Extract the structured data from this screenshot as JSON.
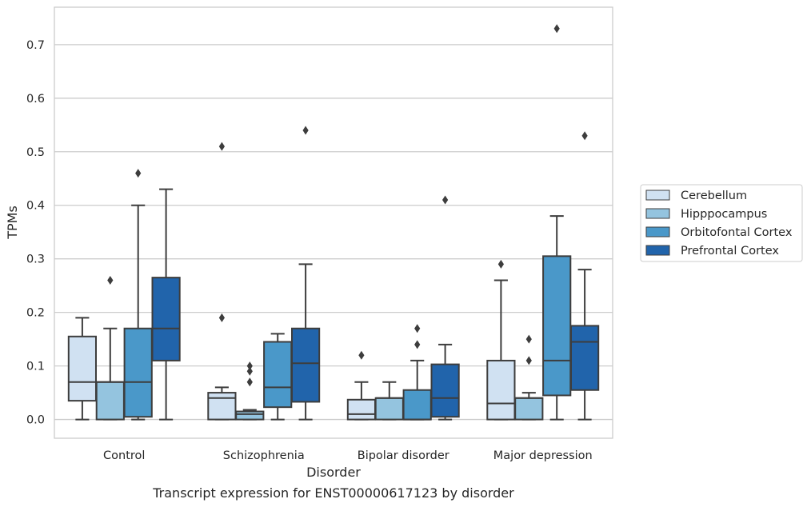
{
  "chart_data": {
    "type": "box",
    "caption": "Transcript expression for ENST00000617123 by disorder",
    "xlabel": "Disorder",
    "ylabel": "TPMs",
    "ylim": [
      -0.035,
      0.77
    ],
    "yticks": [
      "0.0",
      "0.1",
      "0.2",
      "0.3",
      "0.4",
      "0.5",
      "0.6",
      "0.7"
    ],
    "grid": "horizontal",
    "legend_position": "right",
    "categories": [
      "Control",
      "Schizophrenia",
      "Bipolar disorder",
      "Major depression"
    ],
    "series": [
      {
        "name": "Cerebellum",
        "color": "#d0e1f2",
        "boxes": [
          {
            "whislo": 0.0,
            "q1": 0.035,
            "med": 0.07,
            "q3": 0.155,
            "whishi": 0.19,
            "fliers": []
          },
          {
            "whislo": 0.0,
            "q1": 0.0,
            "med": 0.04,
            "q3": 0.05,
            "whishi": 0.06,
            "fliers": [
              0.19,
              0.51
            ]
          },
          {
            "whislo": 0.0,
            "q1": 0.0,
            "med": 0.01,
            "q3": 0.037,
            "whishi": 0.07,
            "fliers": [
              0.12
            ]
          },
          {
            "whislo": 0.0,
            "q1": 0.0,
            "med": 0.03,
            "q3": 0.11,
            "whishi": 0.26,
            "fliers": [
              0.29
            ]
          }
        ]
      },
      {
        "name": "Hipppocampus",
        "color": "#94c4df",
        "boxes": [
          {
            "whislo": 0.0,
            "q1": 0.0,
            "med": 0.07,
            "q3": 0.07,
            "whishi": 0.17,
            "fliers": [
              0.26
            ]
          },
          {
            "whislo": 0.0,
            "q1": 0.0,
            "med": 0.01,
            "q3": 0.015,
            "whishi": 0.018,
            "fliers": [
              0.07,
              0.09,
              0.1
            ]
          },
          {
            "whislo": 0.0,
            "q1": 0.0,
            "med": 0.04,
            "q3": 0.04,
            "whishi": 0.07,
            "fliers": []
          },
          {
            "whislo": 0.0,
            "q1": 0.0,
            "med": 0.04,
            "q3": 0.04,
            "whishi": 0.05,
            "fliers": [
              0.11,
              0.15
            ]
          }
        ]
      },
      {
        "name": "Orbitofontal Cortex",
        "color": "#4a98c9",
        "boxes": [
          {
            "whislo": 0.0,
            "q1": 0.005,
            "med": 0.07,
            "q3": 0.17,
            "whishi": 0.4,
            "fliers": [
              0.46
            ]
          },
          {
            "whislo": 0.0,
            "q1": 0.023,
            "med": 0.06,
            "q3": 0.145,
            "whishi": 0.16,
            "fliers": []
          },
          {
            "whislo": 0.0,
            "q1": 0.0,
            "med": 0.0,
            "q3": 0.055,
            "whishi": 0.11,
            "fliers": [
              0.14,
              0.17
            ]
          },
          {
            "whislo": 0.0,
            "q1": 0.045,
            "med": 0.11,
            "q3": 0.305,
            "whishi": 0.38,
            "fliers": [
              0.73
            ]
          }
        ]
      },
      {
        "name": "Prefrontal Cortex",
        "color": "#2164ab",
        "boxes": [
          {
            "whislo": 0.0,
            "q1": 0.11,
            "med": 0.17,
            "q3": 0.265,
            "whishi": 0.43,
            "fliers": []
          },
          {
            "whislo": 0.0,
            "q1": 0.033,
            "med": 0.105,
            "q3": 0.17,
            "whishi": 0.29,
            "fliers": [
              0.54
            ]
          },
          {
            "whislo": 0.0,
            "q1": 0.005,
            "med": 0.04,
            "q3": 0.103,
            "whishi": 0.14,
            "fliers": [
              0.41
            ]
          },
          {
            "whislo": 0.0,
            "q1": 0.055,
            "med": 0.145,
            "q3": 0.175,
            "whishi": 0.28,
            "fliers": [
              0.53
            ]
          }
        ]
      }
    ]
  }
}
